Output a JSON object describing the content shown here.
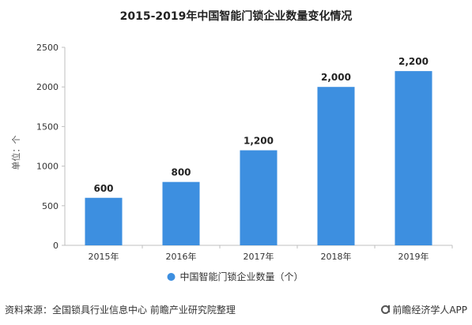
{
  "footer": {
    "source": "资料来源：全国锁具行业信息中心 前瞻产业研究院整理",
    "brand": "前瞻经济学人APP"
  },
  "chart_data": {
    "type": "bar",
    "title": "2015-2019年中国智能门锁企业数量变化情况",
    "categories": [
      "2015年",
      "2016年",
      "2017年",
      "2018年",
      "2019年"
    ],
    "series": [
      {
        "name": "中国智能门锁企业数量（个）",
        "values": [
          600,
          800,
          1200,
          2000,
          2200
        ]
      }
    ],
    "data_labels": [
      "600",
      "800",
      "1,200",
      "2,000",
      "2,200"
    ],
    "ylabel": "单位：个",
    "xlabel": "",
    "ylim": [
      0,
      2500
    ],
    "yticks": [
      0,
      500,
      1000,
      1500,
      2000,
      2500
    ],
    "grid": false,
    "legend": "bottom",
    "colors": {
      "bar": "#3d8fe0",
      "axis": "#bfbfbf",
      "text": "#333333"
    }
  }
}
